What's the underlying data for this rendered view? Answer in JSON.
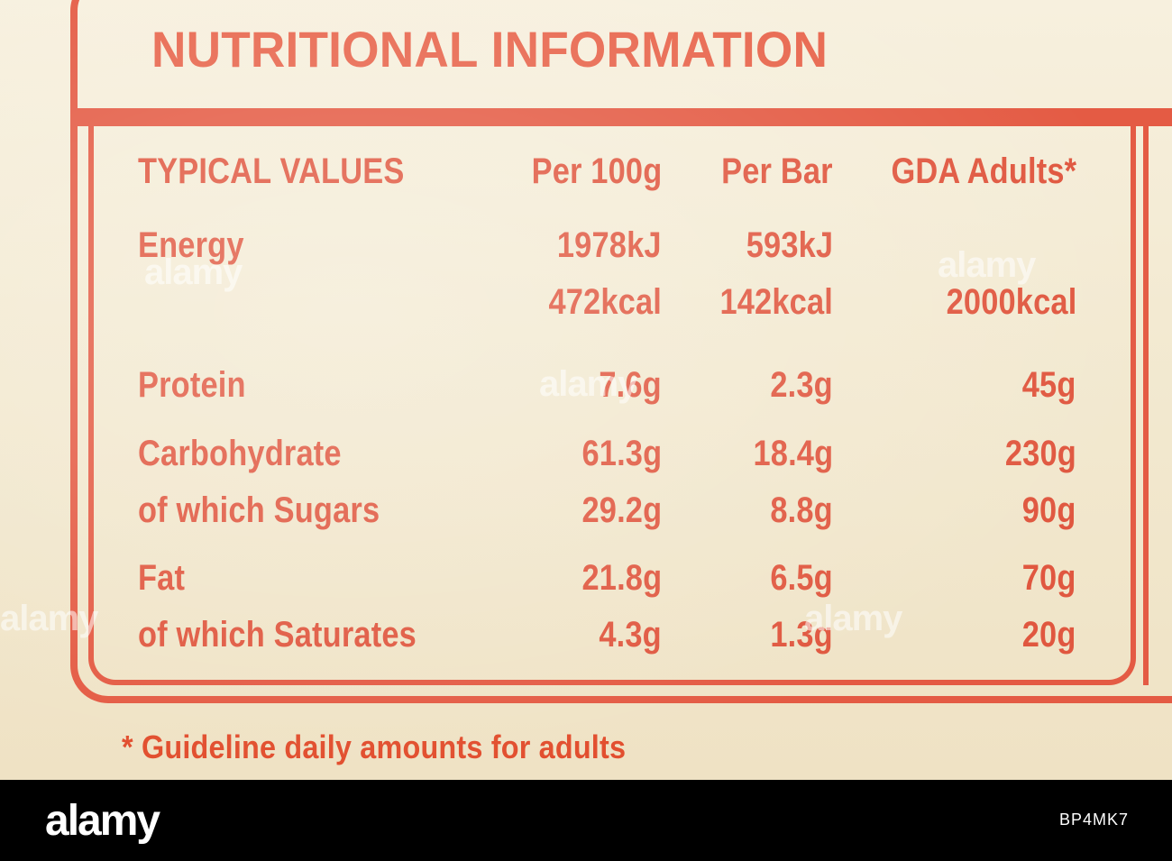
{
  "panel": {
    "title": "NUTRITIONAL INFORMATION",
    "headers": {
      "typical": "TYPICAL VALUES",
      "per100": "Per 100g",
      "perbar": "Per Bar",
      "gda": "GDA Adults*"
    },
    "rows": [
      {
        "label": "Energy",
        "per100": "1978kJ",
        "perbar": "593kJ",
        "gda": ""
      },
      {
        "label": "",
        "per100": "472kcal",
        "perbar": "142kcal",
        "gda": "2000kcal"
      },
      {
        "label": "Protein",
        "per100": "7.6g",
        "perbar": "2.3g",
        "gda": "45g"
      },
      {
        "label": "Carbohydrate",
        "per100": "61.3g",
        "perbar": "18.4g",
        "gda": "230g"
      },
      {
        "label": "of which Sugars",
        "per100": "29.2g",
        "perbar": "8.8g",
        "gda": "90g"
      },
      {
        "label": "Fat",
        "per100": "21.8g",
        "perbar": "6.5g",
        "gda": "70g"
      },
      {
        "label": "of which Saturates",
        "per100": "4.3g",
        "perbar": "1.3g",
        "gda": "20g"
      }
    ],
    "footnote": "* Guideline daily amounts for adults"
  },
  "watermark": {
    "text": "alamy"
  },
  "footer": {
    "brand": "alamy",
    "image_id": "BP4MK7"
  },
  "colors": {
    "ink": "#e0573f",
    "paper": "#f4ecd6",
    "bar": "#000000"
  }
}
